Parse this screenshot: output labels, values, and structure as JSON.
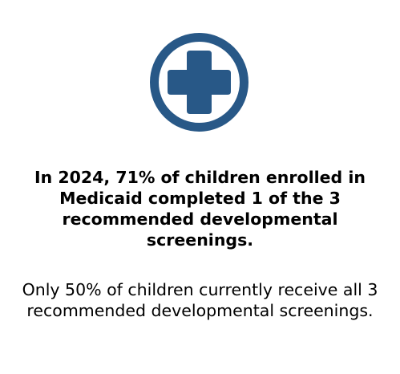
{
  "icon": {
    "name": "medical-plus-icon",
    "color": "#285887"
  },
  "headline": "In 2024, 71% of children enrolled in Medicaid completed 1 of the 3 recommended developmental screenings.",
  "subtext": "Only 50% of children currently receive all 3 recommended developmental screenings."
}
